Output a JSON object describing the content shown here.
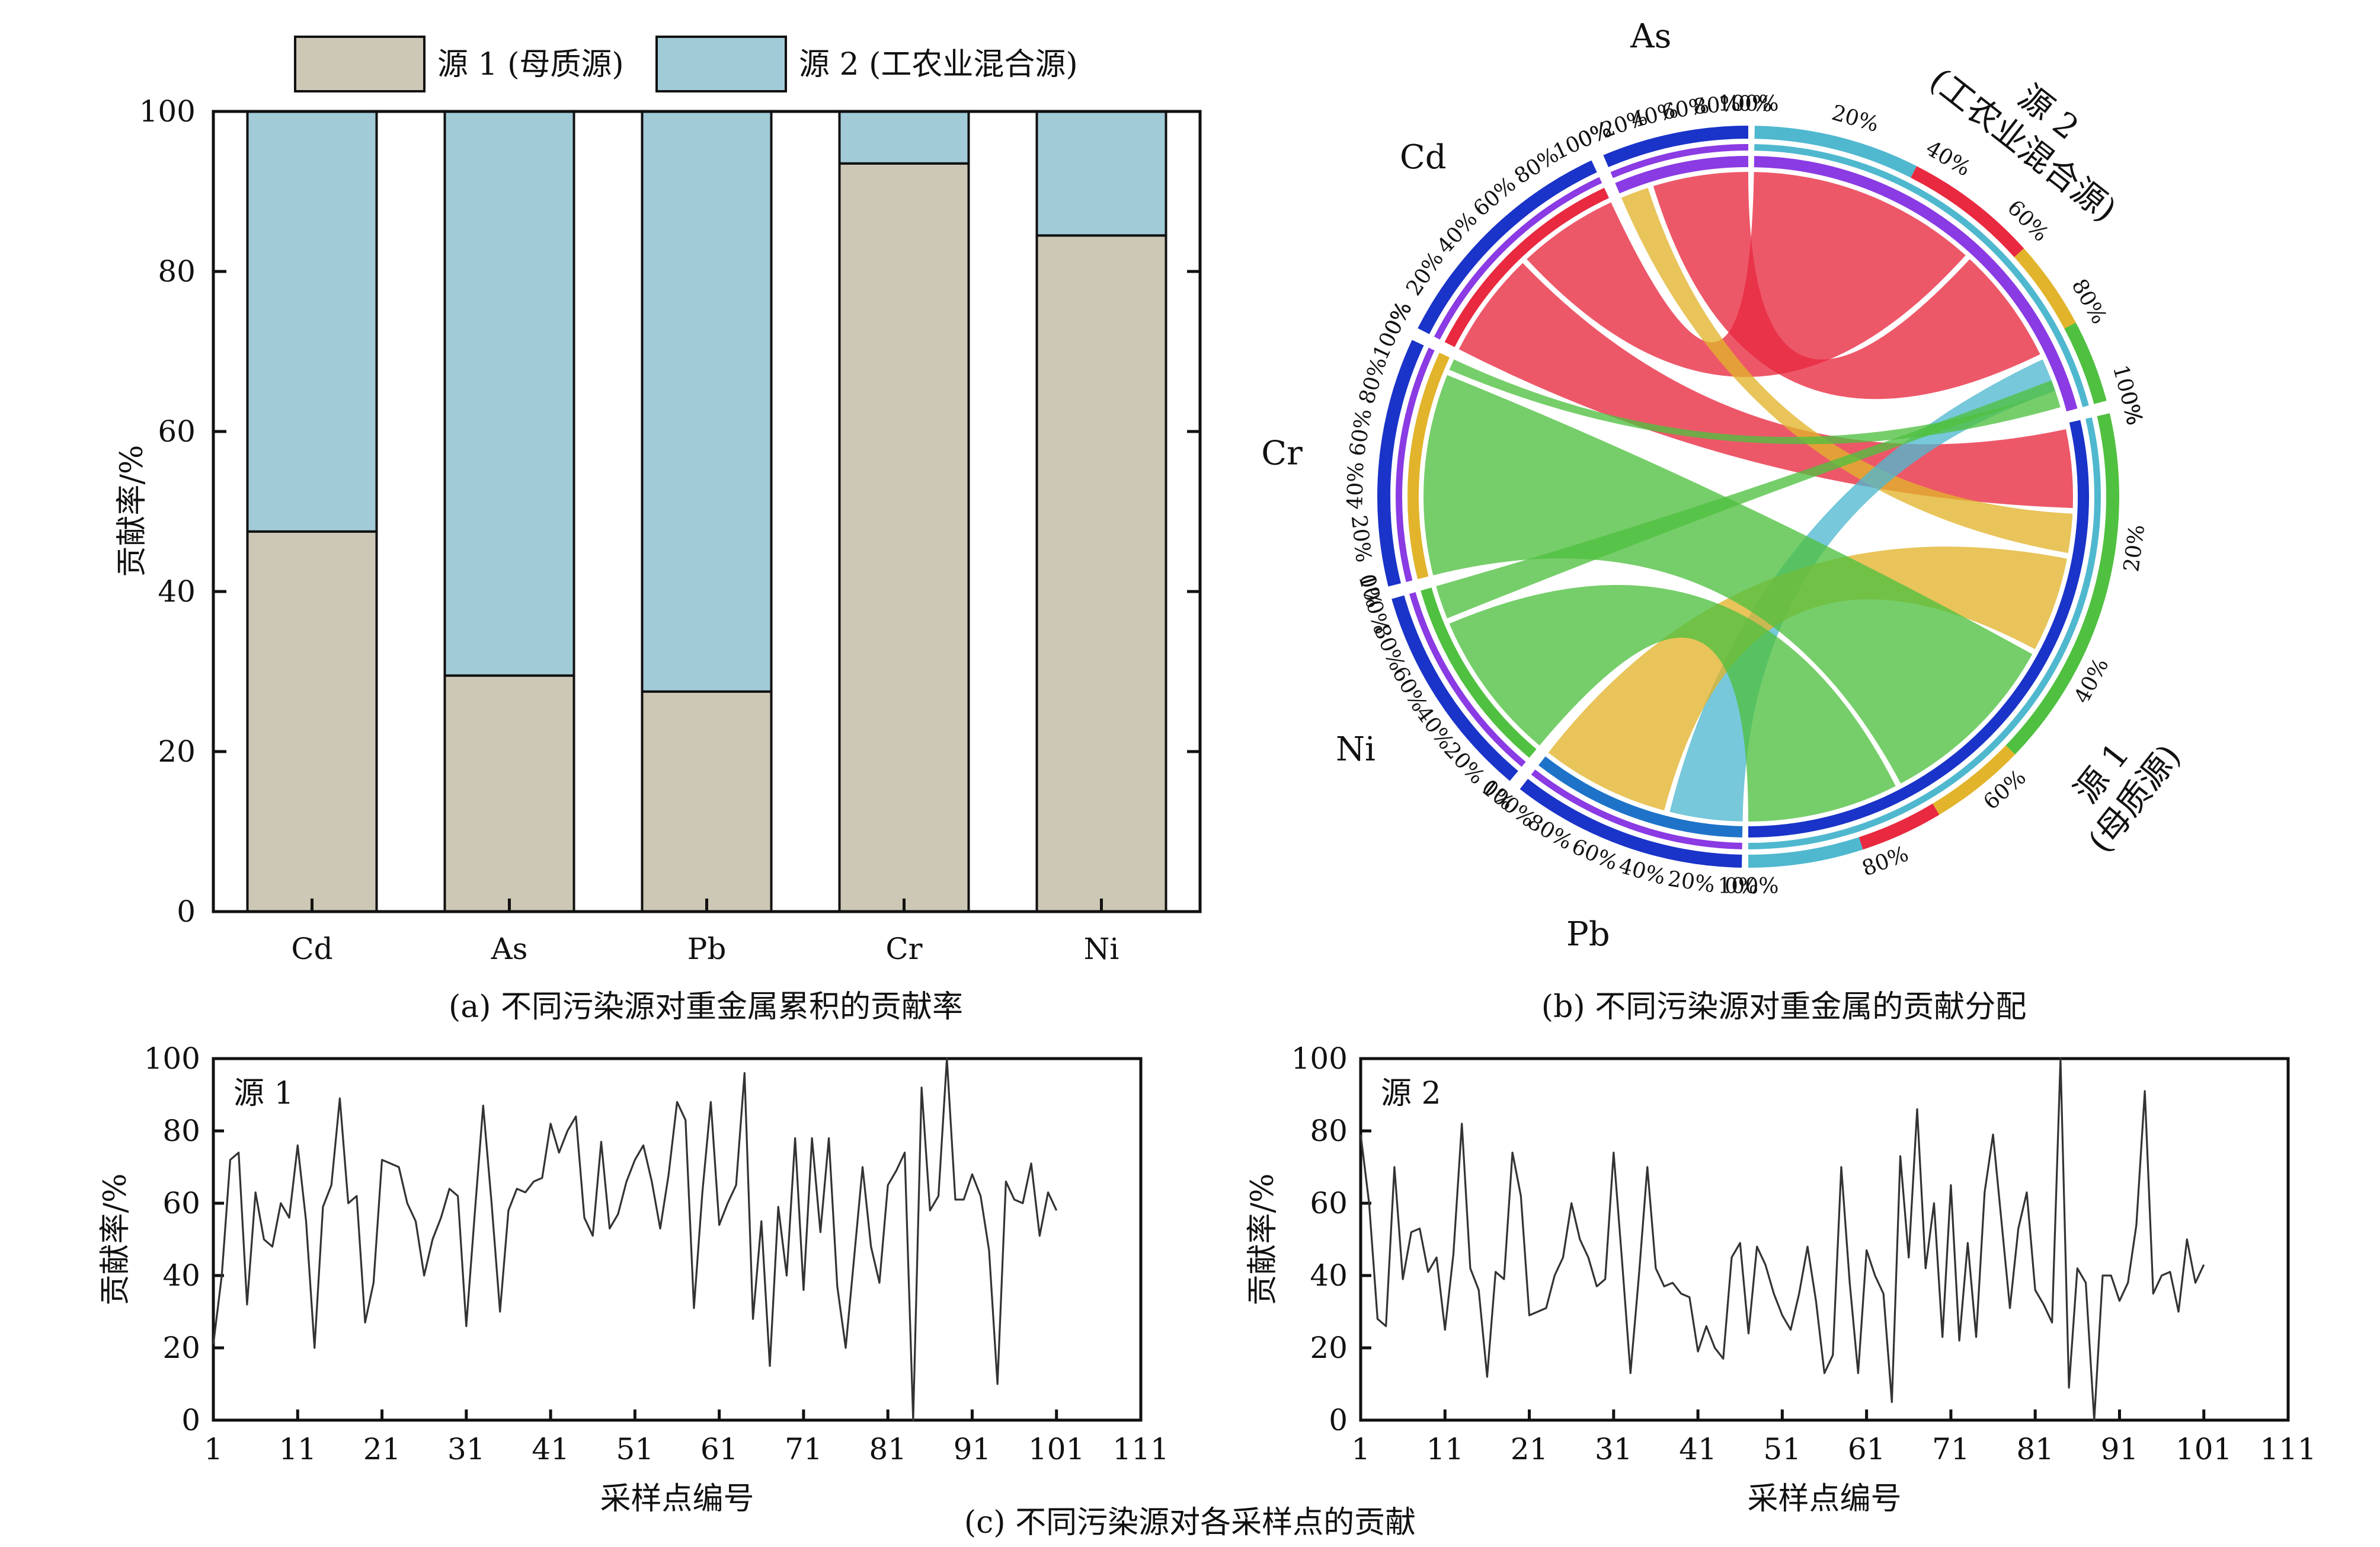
{
  "colors": {
    "source1": "#cdc7b6",
    "source2": "#a2cbd8",
    "Cd": "#e8293f",
    "As": "#8a3be3",
    "Pb": "#1e73c9",
    "Cr": "#e2b42c",
    "Ni": "#50c040",
    "src2_ring": "#4fb8cf",
    "src1_ring": "#1a33c8"
  },
  "captions": {
    "a": "(a) 不同污染源对重金属累积的贡献率",
    "b": "(b) 不同污染源对重金属的贡献分配",
    "c": "(c) 不同污染源对各采样点的贡献"
  },
  "chart_data": [
    {
      "id": "a",
      "type": "bar",
      "stacked": true,
      "categories": [
        "Cd",
        "As",
        "Pb",
        "Cr",
        "Ni"
      ],
      "series": [
        {
          "name": "源 1 (母质源)",
          "values": [
            47.5,
            29.5,
            27.5,
            93.5,
            84.5
          ]
        },
        {
          "name": "源 2 (工农业混合源)",
          "values": [
            52.5,
            70.5,
            72.5,
            6.5,
            15.5
          ]
        }
      ],
      "ylabel": "贡献率/%",
      "ylim": [
        0,
        100
      ],
      "yticks": [
        0,
        20,
        40,
        60,
        80,
        100
      ],
      "legend": "top"
    },
    {
      "id": "b",
      "type": "chord",
      "sectors": [
        {
          "name": "As",
          "label": "As"
        },
        {
          "name": "Cd",
          "label": "Cd"
        },
        {
          "name": "Cr",
          "label": "Cr"
        },
        {
          "name": "Ni",
          "label": "Ni"
        },
        {
          "name": "Pb",
          "label": "Pb"
        },
        {
          "name": "源 1",
          "label": "源 1",
          "sublabel": "(母质源)"
        },
        {
          "name": "源 2",
          "label": "源 2",
          "sublabel": "(工农业混合源)"
        }
      ],
      "percent_ticks": [
        "0%",
        "20%",
        "40%",
        "60%",
        "80%",
        "100%"
      ]
    },
    {
      "id": "c1",
      "type": "line",
      "title": "源 1",
      "xlabel": "采样点编号",
      "ylabel": "贡献率/%",
      "ylim": [
        0,
        100
      ],
      "yticks": [
        0,
        20,
        40,
        60,
        80,
        100
      ],
      "xticks": [
        1,
        11,
        21,
        31,
        41,
        51,
        61,
        71,
        81,
        91,
        101,
        111
      ],
      "x_start": 1,
      "values": [
        21,
        40,
        72,
        74,
        32,
        63,
        50,
        48,
        60,
        56,
        76,
        55,
        20,
        59,
        65,
        89,
        60,
        62,
        27,
        38,
        72,
        71,
        70,
        60,
        55,
        40,
        50,
        56,
        64,
        62,
        26,
        57,
        87,
        60,
        30,
        58,
        64,
        63,
        66,
        67,
        82,
        74,
        80,
        84,
        56,
        51,
        77,
        53,
        57,
        66,
        72,
        76,
        66,
        53,
        68,
        88,
        83,
        31,
        63,
        88,
        54,
        60,
        65,
        96,
        28,
        55,
        15,
        59,
        40,
        78,
        36,
        78,
        52,
        78,
        37,
        20,
        45,
        70,
        48,
        38,
        65,
        69,
        74,
        0,
        92,
        58,
        62,
        100,
        61,
        61,
        68,
        62,
        47,
        10,
        66,
        61,
        60,
        71,
        51,
        63,
        58
      ]
    },
    {
      "id": "c2",
      "type": "line",
      "title": "源 2",
      "xlabel": "采样点编号",
      "ylabel": "贡献率/%",
      "ylim": [
        0,
        100
      ],
      "yticks": [
        0,
        20,
        40,
        60,
        80,
        100
      ],
      "xticks": [
        1,
        11,
        21,
        31,
        41,
        51,
        61,
        71,
        81,
        91,
        101,
        111
      ],
      "x_start": 1,
      "values": [
        79,
        60,
        28,
        26,
        70,
        39,
        52,
        53,
        41,
        45,
        25,
        46,
        82,
        42,
        36,
        12,
        41,
        39,
        74,
        62,
        29,
        30,
        31,
        40,
        45,
        60,
        50,
        45,
        37,
        39,
        74,
        44,
        13,
        40,
        70,
        42,
        37,
        38,
        35,
        34,
        19,
        26,
        20,
        17,
        45,
        49,
        24,
        48,
        43,
        35,
        29,
        25,
        35,
        48,
        33,
        13,
        18,
        70,
        38,
        13,
        47,
        40,
        35,
        5,
        73,
        45,
        86,
        42,
        60,
        23,
        65,
        22,
        49,
        23,
        63,
        79,
        55,
        31,
        53,
        63,
        36,
        32,
        27,
        100,
        9,
        42,
        38,
        0,
        40,
        40,
        33,
        38,
        54,
        91,
        35,
        40,
        41,
        30,
        50,
        38,
        43
      ]
    }
  ]
}
